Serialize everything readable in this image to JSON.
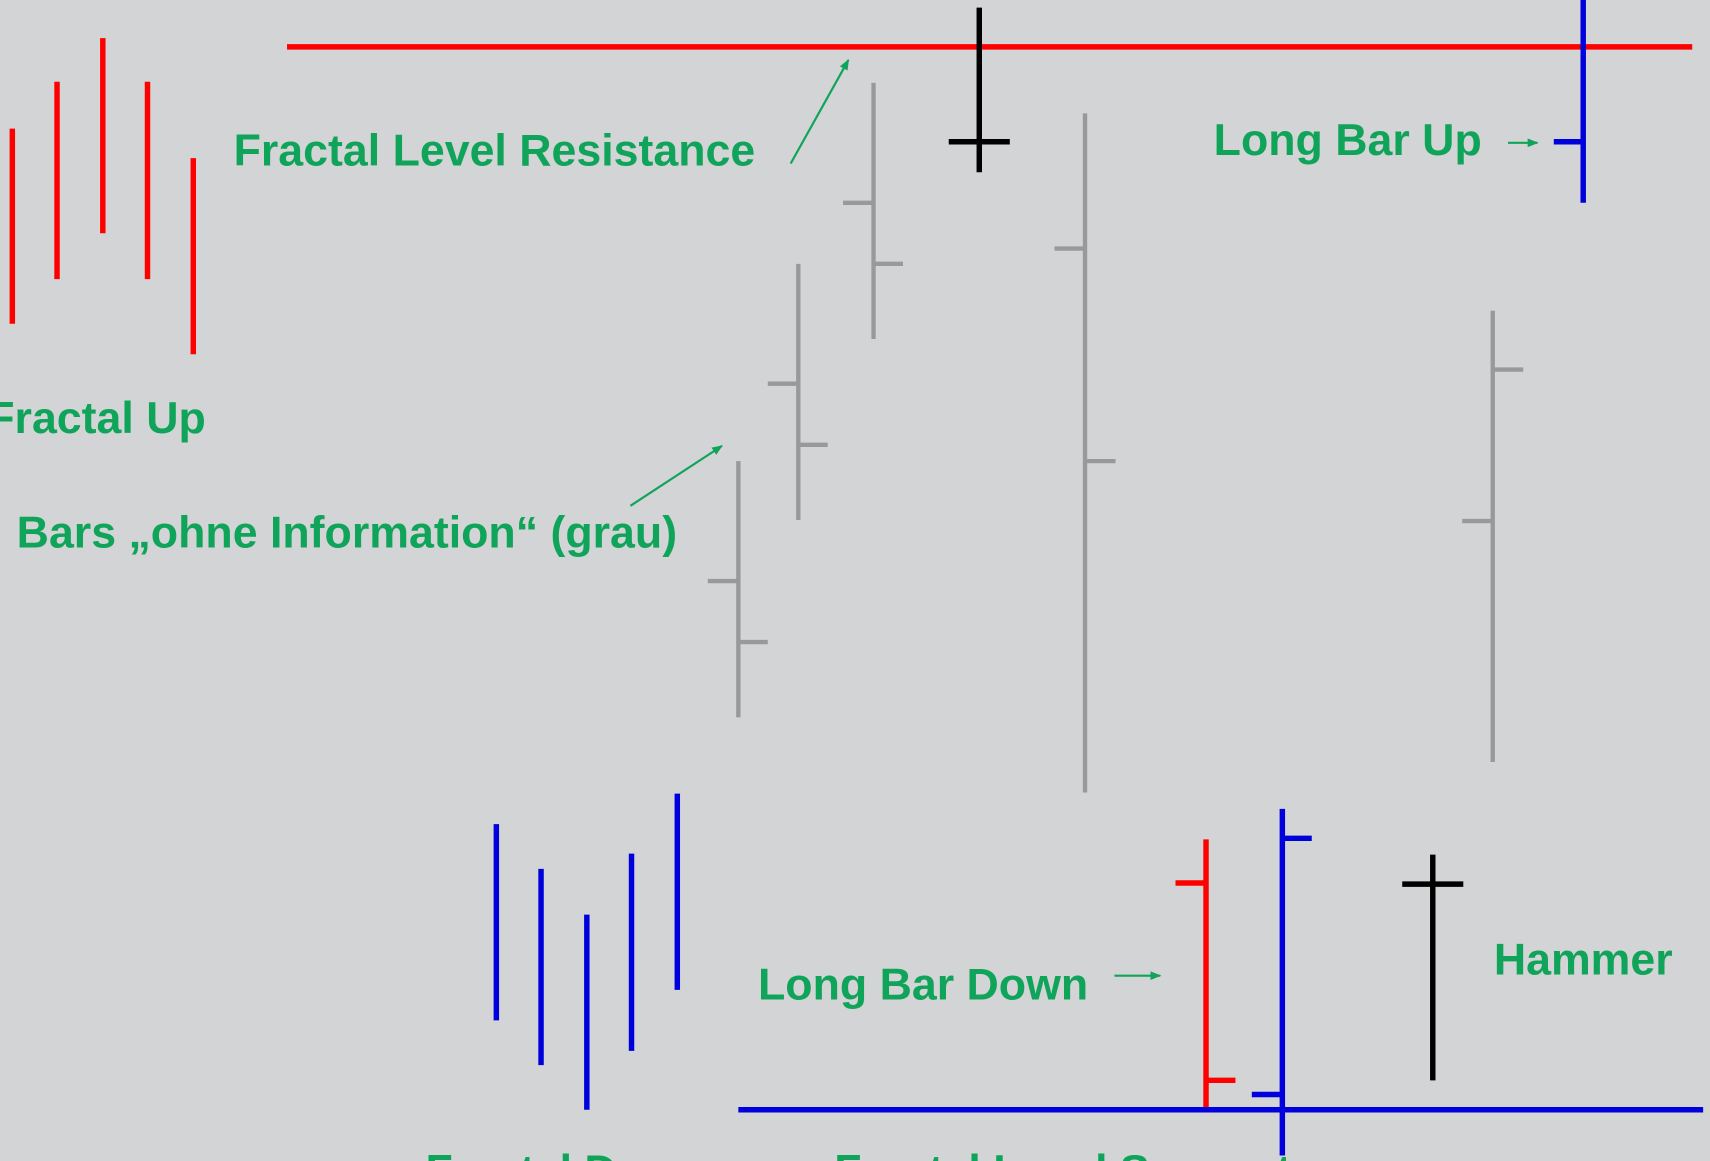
{
  "labels": {
    "resistance": "Fractal Level Resistance",
    "fractal_up": "Fractal Up",
    "bars_no_info": "Bars „ohne Information“ (grau)",
    "long_bar_up": "Long Bar Up",
    "long_bar_down": "Long Bar Down",
    "hammer": "Hammer",
    "fractal_down": "Fractal Down",
    "support": "Fractal Level Support"
  }
}
